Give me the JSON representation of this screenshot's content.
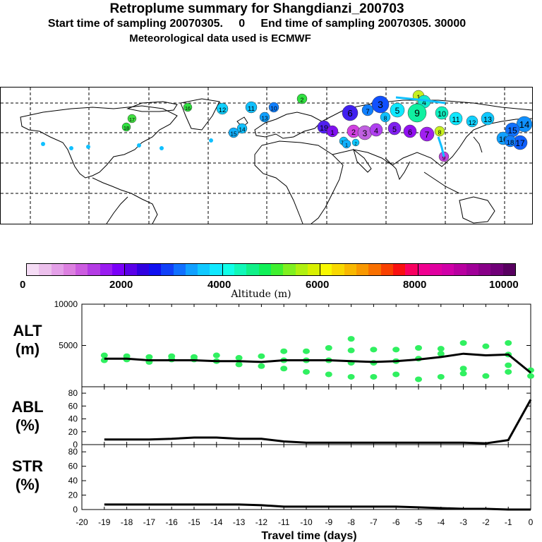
{
  "header": {
    "title": "Retroplume summary for Shangdianzi_200703",
    "line2": "Start time of sampling 20070305.     0     End time of sampling 20070305. 30000",
    "line3": "Meteorological data used is ECMWF"
  },
  "colorbar": {
    "title": "Altitude (m)",
    "ticks": [
      "0",
      "2000",
      "4000",
      "6000",
      "8000",
      "10000"
    ],
    "colors": [
      "#f5dcf5",
      "#ecc0ec",
      "#e4a0e8",
      "#dc80e0",
      "#cc5ce0",
      "#b43ce4",
      "#9a1cf0",
      "#7a00f8",
      "#5a00e8",
      "#3000e0",
      "#1010f0",
      "#1040f8",
      "#1070ff",
      "#10a0ff",
      "#10c8ff",
      "#10e8ff",
      "#10ffe8",
      "#10f8b8",
      "#10f088",
      "#10f058",
      "#40f030",
      "#80f020",
      "#b0f010",
      "#d8f000",
      "#f8f800",
      "#f8d800",
      "#f8b800",
      "#f89800",
      "#f87000",
      "#f84000",
      "#f81010",
      "#f80060",
      "#f00090",
      "#e000a0",
      "#d000a8",
      "#b800a0",
      "#a00098",
      "#880088",
      "#700078",
      "#580060"
    ]
  },
  "map": {
    "labels": [
      "1",
      "2",
      "3",
      "4",
      "5",
      "6",
      "7",
      "8",
      "9",
      "10",
      "11",
      "12",
      "13",
      "14",
      "15",
      "16",
      "17",
      "18",
      "19"
    ]
  },
  "panels": {
    "alt_label": "ALT (m)",
    "abl_label": "ABL (%)",
    "str_label": "STR (%)"
  },
  "chart_data": [
    {
      "type": "line",
      "title": "ALT",
      "ylabel": "ALT (m)",
      "ylim": [
        0,
        10000
      ],
      "yticks": [
        5000,
        10000
      ],
      "x": [
        -19,
        -18,
        -17,
        -16,
        -15,
        -14,
        -13,
        -12,
        -11,
        -10,
        -9,
        -8,
        -7,
        -6,
        -5,
        -4,
        -3,
        -2,
        -1,
        0
      ],
      "series": [
        {
          "name": "median altitude",
          "values": [
            3400,
            3400,
            3200,
            3200,
            3200,
            3100,
            3100,
            3000,
            3200,
            3200,
            3200,
            3100,
            3000,
            3100,
            3300,
            3600,
            4000,
            3800,
            3900,
            1700
          ]
        },
        {
          "name": "cluster altitudes",
          "points": [
            [
              -19,
              3200
            ],
            [
              -19,
              3800
            ],
            [
              -18,
              3300
            ],
            [
              -18,
              3700
            ],
            [
              -17,
              3000
            ],
            [
              -17,
              3600
            ],
            [
              -16,
              3300
            ],
            [
              -16,
              3700
            ],
            [
              -15,
              3300
            ],
            [
              -15,
              3600
            ],
            [
              -14,
              3100
            ],
            [
              -14,
              3800
            ],
            [
              -13,
              2700
            ],
            [
              -13,
              3500
            ],
            [
              -12,
              2500
            ],
            [
              -12,
              3700
            ],
            [
              -11,
              2200
            ],
            [
              -11,
              3200
            ],
            [
              -11,
              4300
            ],
            [
              -10,
              1800
            ],
            [
              -10,
              3200
            ],
            [
              -10,
              4300
            ],
            [
              -9,
              1500
            ],
            [
              -9,
              3200
            ],
            [
              -9,
              4700
            ],
            [
              -8,
              1200
            ],
            [
              -8,
              2900
            ],
            [
              -8,
              4400
            ],
            [
              -8,
              5800
            ],
            [
              -7,
              1200
            ],
            [
              -7,
              2900
            ],
            [
              -7,
              4500
            ],
            [
              -6,
              1500
            ],
            [
              -6,
              3100
            ],
            [
              -6,
              4500
            ],
            [
              -5,
              900
            ],
            [
              -5,
              3400
            ],
            [
              -5,
              4700
            ],
            [
              -4,
              1200
            ],
            [
              -4,
              4000
            ],
            [
              -4,
              4600
            ],
            [
              -3,
              1600
            ],
            [
              -3,
              2200
            ],
            [
              -3,
              5300
            ],
            [
              -2,
              1300
            ],
            [
              -2,
              4900
            ],
            [
              -1,
              1800
            ],
            [
              -1,
              2600
            ],
            [
              -1,
              3900
            ],
            [
              -1,
              5300
            ],
            [
              0,
              1300
            ],
            [
              0,
              2000
            ]
          ]
        }
      ]
    },
    {
      "type": "line",
      "title": "ABL",
      "ylabel": "ABL (%)",
      "ylim": [
        0,
        90
      ],
      "yticks": [
        0,
        20,
        40,
        60,
        80
      ],
      "x": [
        -19,
        -18,
        -17,
        -16,
        -15,
        -14,
        -13,
        -12,
        -11,
        -10,
        -9,
        -8,
        -7,
        -6,
        -5,
        -4,
        -3,
        -2,
        -1,
        0
      ],
      "values": [
        8,
        8,
        8,
        9,
        11,
        11,
        9,
        9,
        5,
        3,
        3,
        3,
        3,
        3,
        3,
        3,
        3,
        2,
        7,
        70
      ]
    },
    {
      "type": "line",
      "title": "STR",
      "ylabel": "STR (%)",
      "ylim": [
        0,
        90
      ],
      "yticks": [
        0,
        20,
        40,
        60,
        80
      ],
      "xlabel": "Travel time (days)",
      "xticks": [
        "-20",
        "-19",
        "-18",
        "-17",
        "-16",
        "-15",
        "-14",
        "-13",
        "-12",
        "-11",
        "-10",
        "-9",
        "-8",
        "-7",
        "-6",
        "-5",
        "-4",
        "-3",
        "-2",
        "-1",
        "0"
      ],
      "x": [
        -19,
        -18,
        -17,
        -16,
        -15,
        -14,
        -13,
        -12,
        -11,
        -10,
        -9,
        -8,
        -7,
        -6,
        -5,
        -4,
        -3,
        -2,
        -1,
        0
      ],
      "values": [
        7,
        7,
        7,
        7,
        7,
        7,
        7,
        6,
        4,
        4,
        4,
        4,
        4,
        4,
        3,
        2,
        1,
        1,
        0,
        0
      ]
    }
  ]
}
